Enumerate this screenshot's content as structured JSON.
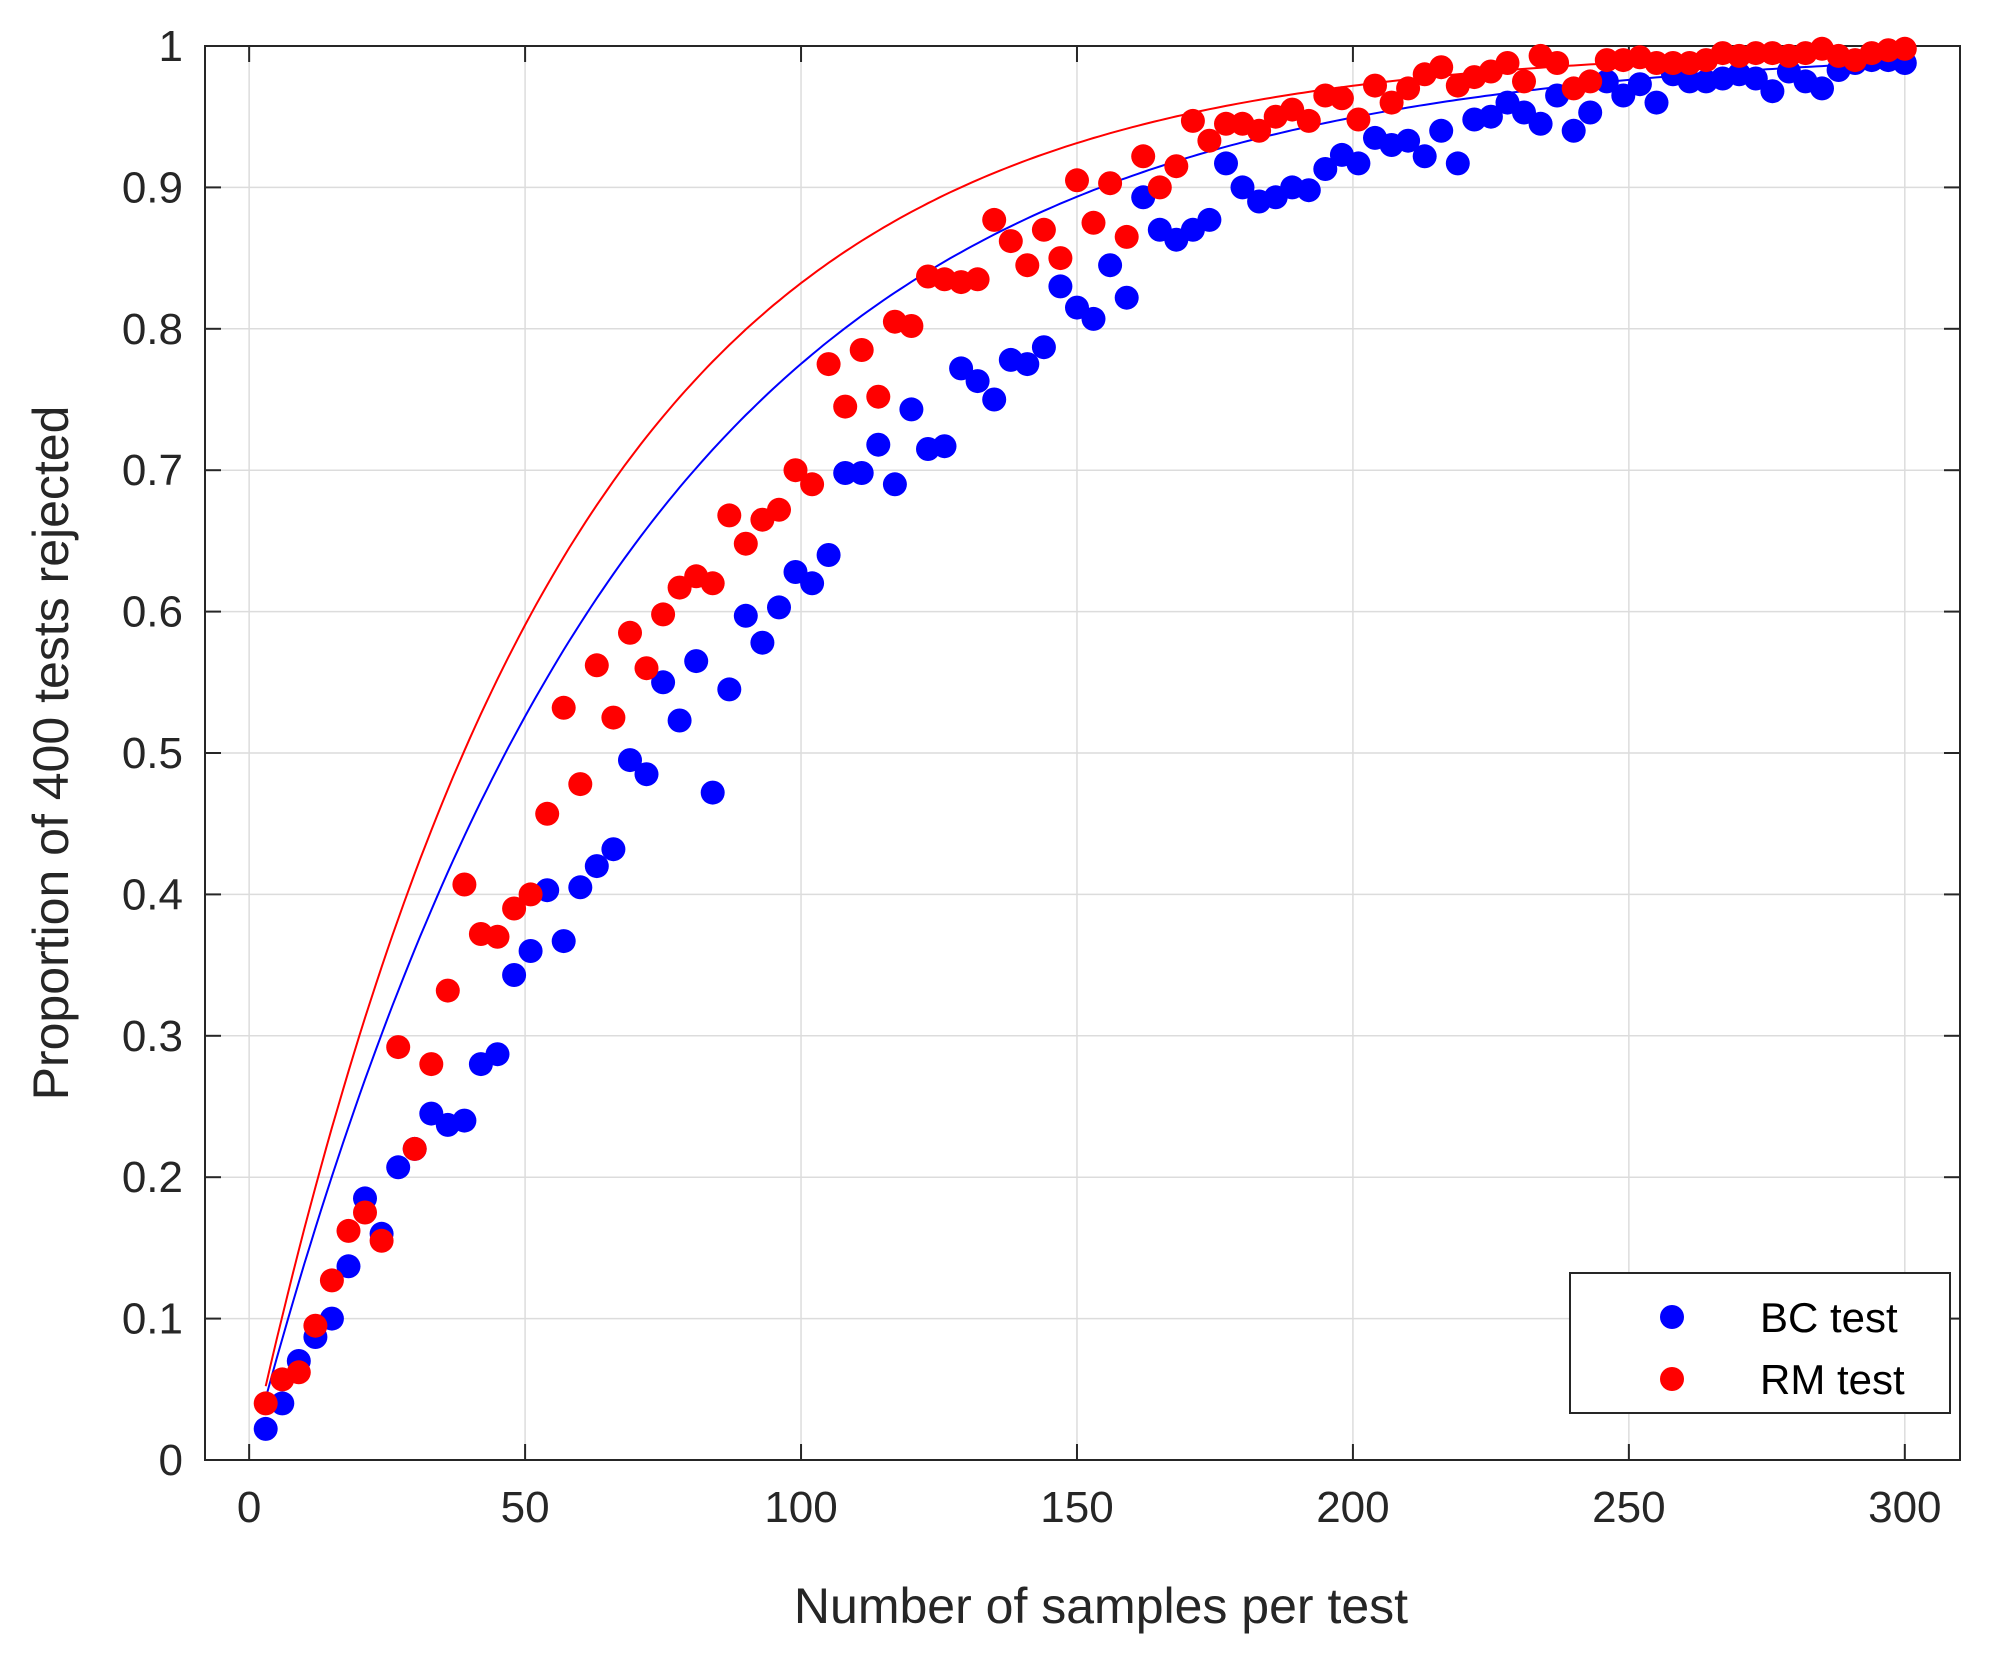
{
  "chart_data": {
    "type": "scatter",
    "title": "",
    "xlabel": "Number of samples per test",
    "ylabel": "Proportion of 400 tests rejected",
    "xlim": [
      -8,
      310
    ],
    "ylim": [
      0,
      1
    ],
    "xticks": [
      0,
      50,
      100,
      150,
      200,
      250,
      300
    ],
    "yticks": [
      0,
      0.1,
      0.2,
      0.3,
      0.4,
      0.5,
      0.6,
      0.7,
      0.8,
      0.9,
      1
    ],
    "xtick_labels": [
      "0",
      "50",
      "100",
      "150",
      "200",
      "250",
      "300"
    ],
    "ytick_labels": [
      "0",
      "0.1",
      "0.2",
      "0.3",
      "0.4",
      "0.5",
      "0.6",
      "0.7",
      "0.8",
      "0.9",
      "1"
    ],
    "grid": true,
    "legend_position": "bottom-right",
    "series": [
      {
        "name": "BC test",
        "color": "#0000ff",
        "x": [
          3,
          6,
          9,
          12,
          15,
          18,
          21,
          24,
          27,
          30,
          33,
          36,
          39,
          42,
          45,
          48,
          51,
          54,
          57,
          60,
          63,
          66,
          69,
          72,
          75,
          78,
          81,
          84,
          87,
          90,
          93,
          96,
          99,
          102,
          105,
          108,
          111,
          114,
          117,
          120,
          123,
          126,
          129,
          132,
          135,
          138,
          141,
          144,
          147,
          150,
          153,
          156,
          159,
          162,
          165,
          168,
          171,
          174,
          177,
          180,
          183,
          186,
          189,
          192,
          195,
          198,
          201,
          204,
          207,
          210,
          213,
          216,
          219,
          222,
          225,
          228,
          231,
          234,
          237,
          240,
          243,
          246,
          249,
          252,
          255,
          258,
          261,
          264,
          267,
          270,
          273,
          276,
          279,
          282,
          285,
          288,
          291,
          294,
          297,
          300
        ],
        "y": [
          0.022,
          0.04,
          0.07,
          0.087,
          0.1,
          0.137,
          0.185,
          0.16,
          0.207,
          0.22,
          0.245,
          0.237,
          0.24,
          0.28,
          0.287,
          0.343,
          0.36,
          0.403,
          0.367,
          0.405,
          0.42,
          0.432,
          0.495,
          0.485,
          0.55,
          0.523,
          0.565,
          0.472,
          0.545,
          0.597,
          0.578,
          0.603,
          0.628,
          0.62,
          0.64,
          0.698,
          0.698,
          0.718,
          0.69,
          0.743,
          0.715,
          0.717,
          0.772,
          0.763,
          0.75,
          0.778,
          0.775,
          0.787,
          0.83,
          0.815,
          0.807,
          0.845,
          0.822,
          0.893,
          0.87,
          0.863,
          0.87,
          0.877,
          0.917,
          0.9,
          0.89,
          0.893,
          0.9,
          0.898,
          0.913,
          0.923,
          0.917,
          0.935,
          0.93,
          0.933,
          0.922,
          0.94,
          0.917,
          0.948,
          0.95,
          0.96,
          0.953,
          0.945,
          0.965,
          0.94,
          0.953,
          0.975,
          0.965,
          0.973,
          0.96,
          0.98,
          0.975,
          0.975,
          0.977,
          0.98,
          0.977,
          0.968,
          0.982,
          0.975,
          0.97,
          0.983,
          0.988,
          0.99,
          0.99,
          0.988
        ]
      },
      {
        "name": "RM test",
        "color": "#ff0000",
        "x": [
          3,
          6,
          9,
          12,
          15,
          18,
          21,
          24,
          27,
          30,
          33,
          36,
          39,
          42,
          45,
          48,
          51,
          54,
          57,
          60,
          63,
          66,
          69,
          72,
          75,
          78,
          81,
          84,
          87,
          90,
          93,
          96,
          99,
          102,
          105,
          108,
          111,
          114,
          117,
          120,
          123,
          126,
          129,
          132,
          135,
          138,
          141,
          144,
          147,
          150,
          153,
          156,
          159,
          162,
          165,
          168,
          171,
          174,
          177,
          180,
          183,
          186,
          189,
          192,
          195,
          198,
          201,
          204,
          207,
          210,
          213,
          216,
          219,
          222,
          225,
          228,
          231,
          234,
          237,
          240,
          243,
          246,
          249,
          252,
          255,
          258,
          261,
          264,
          267,
          270,
          273,
          276,
          279,
          282,
          285,
          288,
          291,
          294,
          297,
          300
        ],
        "y": [
          0.04,
          0.057,
          0.062,
          0.095,
          0.127,
          0.162,
          0.175,
          0.155,
          0.292,
          0.22,
          0.28,
          0.332,
          0.407,
          0.372,
          0.37,
          0.39,
          0.4,
          0.457,
          0.532,
          0.478,
          0.562,
          0.525,
          0.585,
          0.56,
          0.598,
          0.617,
          0.625,
          0.62,
          0.668,
          0.648,
          0.665,
          0.672,
          0.7,
          0.69,
          0.775,
          0.745,
          0.785,
          0.752,
          0.805,
          0.802,
          0.837,
          0.835,
          0.833,
          0.835,
          0.877,
          0.862,
          0.845,
          0.87,
          0.85,
          0.905,
          0.875,
          0.903,
          0.865,
          0.922,
          0.9,
          0.915,
          0.947,
          0.933,
          0.945,
          0.945,
          0.94,
          0.95,
          0.955,
          0.947,
          0.965,
          0.963,
          0.948,
          0.972,
          0.96,
          0.97,
          0.98,
          0.985,
          0.972,
          0.978,
          0.982,
          0.988,
          0.975,
          0.993,
          0.988,
          0.97,
          0.975,
          0.99,
          0.99,
          0.992,
          0.988,
          0.988,
          0.988,
          0.99,
          0.995,
          0.993,
          0.995,
          0.995,
          0.993,
          0.995,
          0.998,
          0.993,
          0.99,
          0.995,
          0.997,
          0.998
        ]
      }
    ],
    "fit_curves": [
      {
        "series": "BC test",
        "color": "#0000ff",
        "model": "1 - exp(-x/k)",
        "k": 67
      },
      {
        "series": "RM test",
        "color": "#ff0000",
        "model": "1 - exp(-x/k)",
        "k": 56
      }
    ]
  }
}
